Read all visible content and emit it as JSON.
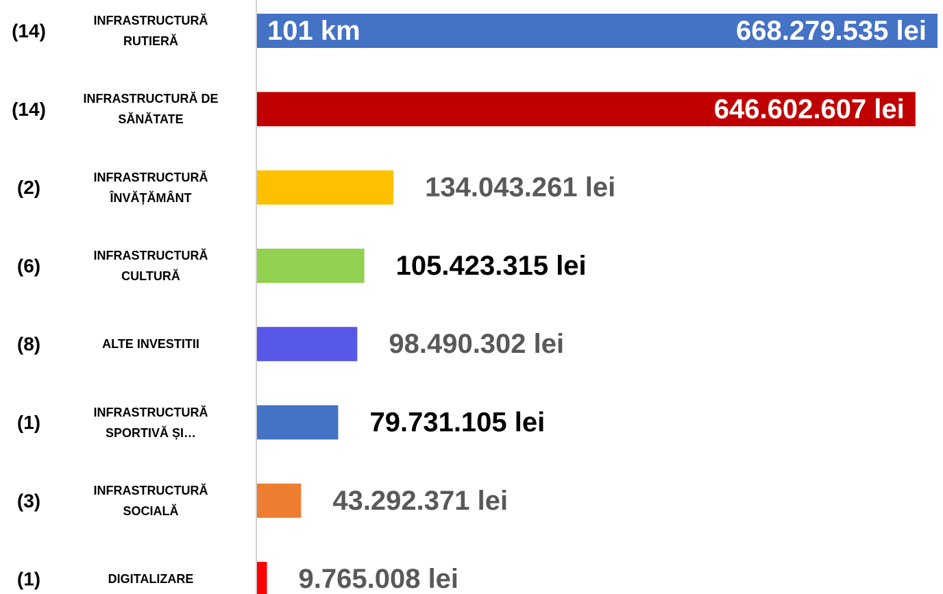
{
  "chart_data": {
    "type": "bar",
    "orientation": "horizontal",
    "categories": [
      "INFRASTRUCTURĂ RUTIERĂ",
      "INFRASTRUCTURĂ DE SĂNĂTATE",
      "INFRASTRUCTURĂ ÎNVĂȚĂMÂNT",
      "INFRASTRUCTURĂ CULTURĂ",
      "ALTE INVESTITII",
      "INFRASTRUCTURĂ SPORTIVĂ ȘI…",
      "INFRASTRUCTURĂ SOCIALĂ",
      "DIGITALIZARE"
    ],
    "project_counts": [
      "(14)",
      "(14)",
      "(2)",
      "(6)",
      "(8)",
      "(1)",
      "(3)",
      "(1)"
    ],
    "values": [
      668279535,
      646602607,
      134043261,
      105423315,
      98490302,
      79731105,
      43292371,
      9765008
    ],
    "value_labels": [
      "668.279.535 lei",
      "646.602.607 lei",
      "134.043.261 lei",
      "105.423.315 lei",
      "98.490.302 lei",
      "79.731.105 lei",
      "43.292.371 lei",
      "9.765.008 lei"
    ],
    "colors": [
      "#4472c4",
      "#c00000",
      "#ffc000",
      "#92d050",
      "#5757e8",
      "#4472c4",
      "#ed7d31",
      "#ff0000"
    ],
    "label_colors": [
      "#ffffff",
      "#ffffff",
      "#595959",
      "#000000",
      "#595959",
      "#000000",
      "#595959",
      "#595959"
    ],
    "annotation": "101 km"
  }
}
